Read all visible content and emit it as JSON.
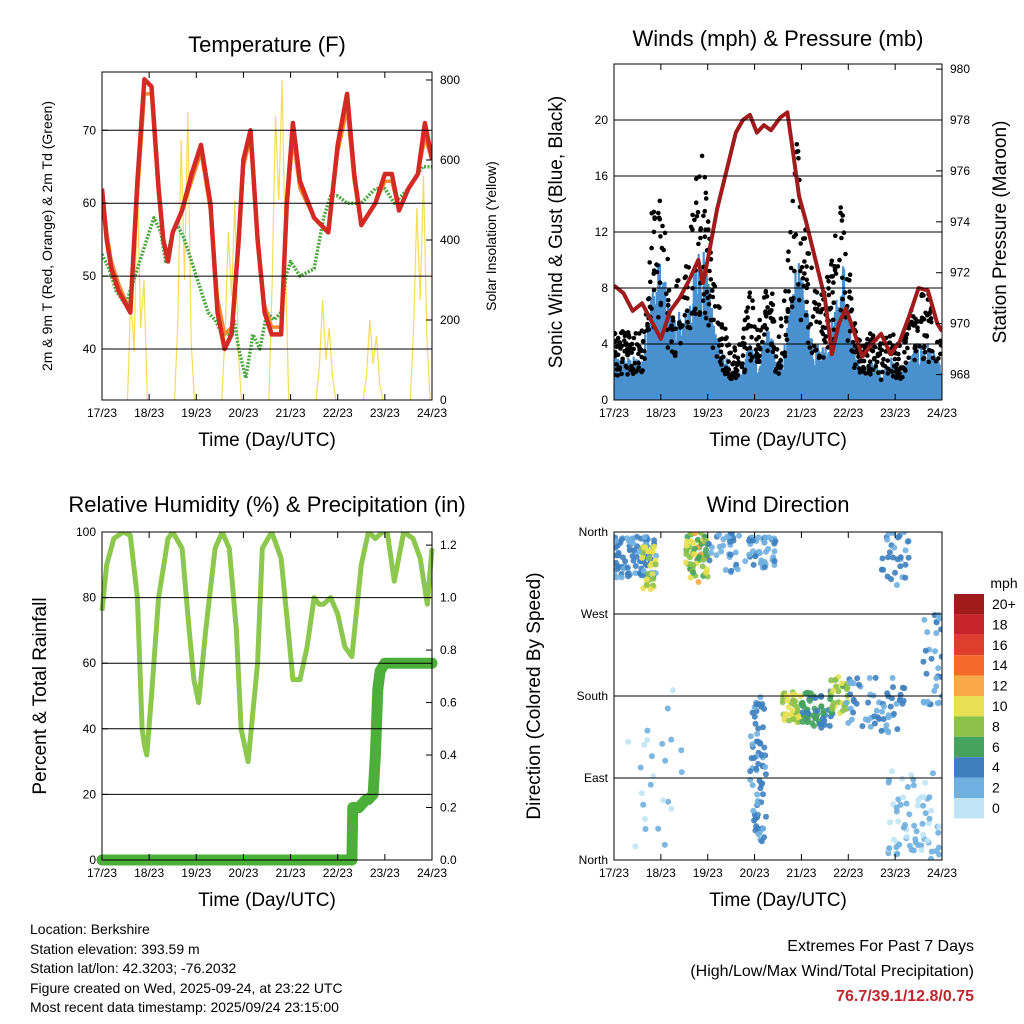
{
  "chart_data": [
    {
      "id": "temp",
      "type": "line",
      "title": "Temperature (F)",
      "xlabel": "Time (Day/UTC)",
      "ylabel": "2m & 9m T (Red, Orange) & 2m Td (Green)",
      "y2label": "Solar Insolation (Yellow)",
      "x_ticks": [
        "17/23",
        "18/23",
        "19/23",
        "20/23",
        "21/23",
        "22/23",
        "23/23",
        "24/23"
      ],
      "xlim": [
        0,
        7
      ],
      "ylim": [
        33,
        78
      ],
      "y_ticks": [
        40,
        50,
        60,
        70
      ],
      "y2lim": [
        0,
        820
      ],
      "y2_ticks": [
        0,
        200,
        400,
        600,
        800
      ],
      "series": [
        {
          "name": "2m Temperature",
          "color": "#d42a24",
          "x": [
            0,
            0.1,
            0.2,
            0.35,
            0.6,
            0.75,
            0.9,
            1.05,
            1.2,
            1.3,
            1.4,
            1.5,
            1.7,
            1.9,
            2.1,
            2.3,
            2.45,
            2.6,
            2.75,
            2.9,
            3.0,
            3.15,
            3.3,
            3.45,
            3.6,
            3.8,
            3.92,
            4.05,
            4.2,
            4.5,
            4.8,
            5.0,
            5.2,
            5.35,
            5.5,
            5.8,
            6.0,
            6.15,
            6.3,
            6.5,
            6.7,
            6.85,
            7.0
          ],
          "values": [
            62,
            55,
            51,
            48,
            45,
            63,
            77,
            76,
            62,
            55,
            52,
            56,
            59,
            64,
            68,
            60,
            45,
            40,
            42,
            55,
            66,
            70,
            55,
            45,
            42,
            42,
            60,
            71,
            63,
            58,
            56,
            68,
            75,
            64,
            57,
            60,
            64,
            64,
            59,
            62,
            64,
            71,
            66
          ]
        },
        {
          "name": "9m Temperature",
          "color": "#f28a30",
          "x": [
            0,
            0.1,
            0.2,
            0.35,
            0.6,
            0.75,
            0.9,
            1.05,
            1.2,
            1.3,
            1.4,
            1.5,
            1.7,
            1.9,
            2.1,
            2.3,
            2.45,
            2.6,
            2.75,
            2.9,
            3.0,
            3.15,
            3.3,
            3.45,
            3.6,
            3.8,
            3.92,
            4.05,
            4.2,
            4.5,
            4.8,
            5.0,
            5.2,
            5.35,
            5.5,
            5.8,
            6.0,
            6.15,
            6.3,
            6.5,
            6.7,
            6.85,
            7.0
          ],
          "values": [
            61,
            56,
            52,
            49,
            45,
            61,
            75,
            75,
            61,
            55,
            52,
            56,
            59,
            63,
            67,
            59,
            47,
            42,
            43,
            54,
            65,
            69,
            55,
            46,
            43,
            43,
            59,
            69,
            62,
            58,
            56,
            67,
            73,
            63,
            57,
            60,
            63,
            63,
            59,
            62,
            64,
            69,
            66
          ]
        },
        {
          "name": "2m Dewpoint",
          "color": "#4aa83c",
          "x": [
            0,
            0.15,
            0.3,
            0.5,
            0.65,
            0.8,
            1.0,
            1.1,
            1.25,
            1.35,
            1.5,
            1.6,
            1.75,
            1.9,
            2.1,
            2.25,
            2.4,
            2.55,
            2.7,
            2.8,
            2.9,
            3.05,
            3.2,
            3.35,
            3.5,
            3.65,
            3.8,
            3.9,
            4.0,
            4.2,
            4.5,
            4.7,
            4.85,
            5.0,
            5.2,
            5.5,
            5.8,
            6.0,
            6.2,
            6.5,
            6.8,
            7.0
          ],
          "values": [
            53,
            51,
            48,
            46,
            49,
            52,
            56,
            58,
            56,
            52,
            56,
            57,
            55,
            52,
            48,
            45,
            44,
            42,
            42,
            44,
            40,
            36,
            42,
            40,
            45,
            44,
            45,
            50,
            52,
            50,
            51,
            58,
            61,
            61,
            60,
            60,
            62,
            62,
            60,
            62,
            65,
            65
          ]
        }
      ],
      "y2_series": {
        "name": "Solar Insolation",
        "color": "#f5dc58",
        "peaks": [
          {
            "x": 0.75,
            "values": [
              0,
              260,
              120,
              540,
              180,
              300,
              0
            ]
          },
          {
            "x": 1.75,
            "values": [
              0,
              200,
              650,
              300,
              720,
              150,
              0
            ]
          },
          {
            "x": 2.75,
            "values": [
              0,
              160,
              420,
              260,
              500,
              120,
              0
            ]
          },
          {
            "x": 3.75,
            "values": [
              0,
              300,
              710,
              500,
              800,
              350,
              0
            ]
          },
          {
            "x": 4.75,
            "values": [
              0,
              80,
              250,
              100,
              180,
              60,
              0
            ]
          },
          {
            "x": 5.75,
            "values": [
              0,
              60,
              200,
              90,
              160,
              40,
              0
            ]
          },
          {
            "x": 6.75,
            "values": [
              0,
              180,
              480,
              250,
              560,
              160,
              0
            ]
          }
        ]
      }
    },
    {
      "id": "winds",
      "type": "scatter",
      "title": "Winds (mph) & Pressure (mb)",
      "xlabel": "Time (Day/UTC)",
      "ylabel": "Sonic Wind & Gust (Blue, Black)",
      "y2label": "Station Pressure (Maroon)",
      "x_ticks": [
        "17/23",
        "18/23",
        "19/23",
        "20/23",
        "21/23",
        "22/23",
        "23/23",
        "24/23"
      ],
      "xlim": [
        0,
        7
      ],
      "ylim": [
        0,
        24
      ],
      "y_ticks": [
        0,
        4,
        8,
        12,
        16,
        20
      ],
      "y2lim": [
        967.0,
        980.2
      ],
      "y2_ticks": [
        968,
        970,
        972,
        974,
        976,
        978,
        980
      ],
      "wind_envelope": {
        "x": [
          0,
          0.3,
          0.6,
          0.8,
          1.0,
          1.2,
          1.5,
          1.7,
          1.9,
          2.1,
          2.3,
          2.5,
          2.7,
          2.9,
          3.1,
          3.3,
          3.5,
          3.7,
          3.9,
          4.1,
          4.3,
          4.5,
          4.7,
          4.9,
          5.1,
          5.3,
          5.5,
          5.7,
          5.9,
          6.1,
          6.3,
          6.5,
          6.7,
          6.9,
          7.0
        ],
        "values": [
          3,
          3,
          3,
          8,
          10,
          6,
          6,
          9,
          12,
          6,
          4,
          2,
          2,
          4,
          3,
          6,
          2,
          5,
          10,
          7,
          4,
          4,
          6,
          10,
          4,
          2,
          3,
          2,
          3,
          2,
          3,
          4,
          4,
          3,
          2
        ]
      },
      "gust_envelope": {
        "x": [
          0,
          0.3,
          0.6,
          0.8,
          1.0,
          1.2,
          1.5,
          1.7,
          1.9,
          2.1,
          2.3,
          2.5,
          2.7,
          2.9,
          3.1,
          3.3,
          3.5,
          3.7,
          3.9,
          4.1,
          4.3,
          4.5,
          4.7,
          4.9,
          5.1,
          5.3,
          5.5,
          5.7,
          5.9,
          6.1,
          6.3,
          6.5,
          6.7,
          6.9,
          7.0
        ],
        "values": [
          5,
          5,
          5,
          14,
          16,
          8,
          9,
          15,
          18,
          9,
          6,
          4,
          4,
          8,
          6,
          10,
          4,
          10,
          19,
          12,
          8,
          8,
          12,
          16,
          6,
          4,
          5,
          4,
          5,
          4,
          6,
          8,
          8,
          5,
          4
        ]
      },
      "pressure": {
        "name": "Station Pressure",
        "color": "#a01c1c",
        "x": [
          0,
          0.2,
          0.4,
          0.6,
          0.8,
          1.0,
          1.2,
          1.4,
          1.6,
          1.8,
          1.9,
          2.0,
          2.2,
          2.4,
          2.6,
          2.75,
          2.9,
          3.05,
          3.2,
          3.35,
          3.55,
          3.7,
          3.8,
          3.95,
          4.1,
          4.3,
          4.5,
          4.65,
          4.8,
          4.95,
          5.1,
          5.3,
          5.5,
          5.7,
          5.9,
          6.1,
          6.3,
          6.5,
          6.7,
          6.9,
          7.0
        ],
        "values": [
          971.5,
          971.2,
          970.5,
          970.8,
          970.1,
          969.4,
          970.5,
          971.0,
          971.7,
          972.5,
          971.6,
          972.5,
          974.5,
          976.0,
          977.5,
          978.0,
          978.2,
          977.5,
          977.8,
          977.6,
          978.1,
          978.3,
          977.0,
          975.0,
          974.0,
          972.5,
          971.0,
          968.8,
          970.0,
          970.6,
          969.8,
          968.7,
          969.2,
          969.6,
          968.8,
          969.3,
          970.3,
          971.4,
          971.3,
          970.0,
          969.7
        ]
      }
    },
    {
      "id": "rh",
      "type": "line",
      "title": "Relative Humidity (%) & Precipitation (in)",
      "xlabel": "Time (Day/UTC)",
      "ylabel": "Percent & Total Rainfall",
      "x_ticks": [
        "17/23",
        "18/23",
        "19/23",
        "20/23",
        "21/23",
        "22/23",
        "23/23",
        "24/23"
      ],
      "xlim": [
        0,
        7
      ],
      "ylim": [
        0,
        100
      ],
      "y_ticks": [
        0,
        20,
        40,
        60,
        80,
        100
      ],
      "y2lim": [
        0,
        1.25
      ],
      "y2_ticks": [
        0.0,
        0.2,
        0.4,
        0.6,
        0.8,
        1.0,
        1.2
      ],
      "series": [
        {
          "name": "Relative Humidity",
          "color": "#8cc84e",
          "x": [
            0,
            0.1,
            0.25,
            0.45,
            0.6,
            0.75,
            0.85,
            0.9,
            0.95,
            1.05,
            1.2,
            1.4,
            1.5,
            1.7,
            1.85,
            1.95,
            2.05,
            2.2,
            2.4,
            2.55,
            2.7,
            2.85,
            2.95,
            3.1,
            3.3,
            3.4,
            3.6,
            3.8,
            3.95,
            4.05,
            4.2,
            4.35,
            4.5,
            4.6,
            4.7,
            4.85,
            5.0,
            5.15,
            5.3,
            5.5,
            5.65,
            5.8,
            5.95,
            6.05,
            6.2,
            6.4,
            6.6,
            6.75,
            6.9,
            7.0
          ],
          "values": [
            76,
            90,
            98,
            100,
            99,
            80,
            40,
            35,
            32,
            50,
            80,
            98,
            100,
            95,
            70,
            55,
            48,
            70,
            95,
            100,
            95,
            70,
            40,
            30,
            60,
            95,
            100,
            92,
            70,
            55,
            55,
            65,
            80,
            78,
            78,
            80,
            75,
            65,
            62,
            90,
            100,
            98,
            100,
            100,
            85,
            100,
            98,
            92,
            78,
            95
          ]
        },
        {
          "name": "Total Precipitation",
          "color": "#4caf3a",
          "x": [
            0,
            5.3,
            5.32,
            5.45,
            5.55,
            5.6,
            5.65,
            5.75,
            5.8,
            5.85,
            5.9,
            6.0,
            7.0
          ],
          "values": [
            0,
            0,
            0.2,
            0.2,
            0.22,
            0.23,
            0.23,
            0.25,
            0.4,
            0.65,
            0.72,
            0.75,
            0.75
          ]
        }
      ]
    },
    {
      "id": "dir",
      "type": "scatter",
      "title": "Wind Direction",
      "xlabel": "Time (Day/UTC)",
      "ylabel": "Direction (Colored By Speed)",
      "x_ticks": [
        "17/23",
        "18/23",
        "19/23",
        "20/23",
        "21/23",
        "22/23",
        "23/23",
        "24/23"
      ],
      "xlim": [
        0,
        7
      ],
      "ylim": [
        0,
        360
      ],
      "y_tick_values": [
        0,
        90,
        180,
        270,
        360
      ],
      "y_tick_labels": [
        "North",
        "East",
        "South",
        "West",
        "North"
      ],
      "legend_title": "mph",
      "legend_labels": [
        "20+",
        "18",
        "16",
        "14",
        "12",
        "10",
        "8",
        "6",
        "4",
        "2",
        "0"
      ],
      "legend_colors": [
        "#a01c1c",
        "#c9242a",
        "#e03e2c",
        "#f46a2a",
        "#f9a94a",
        "#e9e056",
        "#8cc24a",
        "#45a35e",
        "#3e7fbf",
        "#6fb0e0",
        "#bfe4f5"
      ],
      "clusters": [
        {
          "x": [
            0,
            0.9
          ],
          "dir": [
            310,
            355
          ],
          "speed": [
            2,
            5
          ],
          "n": 90
        },
        {
          "x": [
            0.6,
            0.9
          ],
          "dir": [
            295,
            345
          ],
          "speed": [
            7,
            11
          ],
          "n": 30
        },
        {
          "x": [
            1.5,
            2.0
          ],
          "dir": [
            305,
            360
          ],
          "speed": [
            5,
            12
          ],
          "n": 70
        },
        {
          "x": [
            2.0,
            2.7
          ],
          "dir": [
            315,
            360
          ],
          "speed": [
            1,
            4
          ],
          "n": 30
        },
        {
          "x": [
            2.8,
            3.45
          ],
          "dir": [
            320,
            355
          ],
          "speed": [
            1,
            4
          ],
          "n": 45
        },
        {
          "x": [
            2.9,
            3.25
          ],
          "dir": [
            20,
            180
          ],
          "speed": [
            2,
            5
          ],
          "n": 70
        },
        {
          "x": [
            3.6,
            4.0
          ],
          "dir": [
            150,
            185
          ],
          "speed": [
            7,
            11
          ],
          "n": 40
        },
        {
          "x": [
            4.0,
            4.7
          ],
          "dir": [
            145,
            185
          ],
          "speed": [
            3,
            7
          ],
          "n": 60
        },
        {
          "x": [
            4.6,
            5.0
          ],
          "dir": [
            160,
            205
          ],
          "speed": [
            6,
            10
          ],
          "n": 30
        },
        {
          "x": [
            4.9,
            6.2
          ],
          "dir": [
            140,
            200
          ],
          "speed": [
            1,
            5
          ],
          "n": 60
        },
        {
          "x": [
            5.7,
            6.3
          ],
          "dir": [
            300,
            360
          ],
          "speed": [
            2,
            5
          ],
          "n": 30
        },
        {
          "x": [
            5.8,
            7.0
          ],
          "dir": [
            0,
            100
          ],
          "speed": [
            0,
            3
          ],
          "n": 70
        },
        {
          "x": [
            6.6,
            7.0
          ],
          "dir": [
            170,
            270
          ],
          "speed": [
            1,
            4
          ],
          "n": 30
        },
        {
          "x": [
            0.3,
            1.5
          ],
          "dir": [
            0,
            200
          ],
          "speed": [
            0,
            2
          ],
          "n": 25
        }
      ]
    }
  ],
  "info": {
    "location": "Location: Berkshire",
    "elevation": "Station elevation: 393.59 m",
    "latlon": "Station lat/lon: 42.3203; -76.2032",
    "created": "Figure created on Wed, 2025-09-24, at 23:22 UTC",
    "latest": "Most recent data timestamp: 2025/09/24 23:15:00"
  },
  "extremes": {
    "heading": "Extremes For Past 7 Days",
    "subheading": "(High/Low/Max Wind/Total Precipitation)",
    "values": "76.7/39.1/12.8/0.75"
  }
}
